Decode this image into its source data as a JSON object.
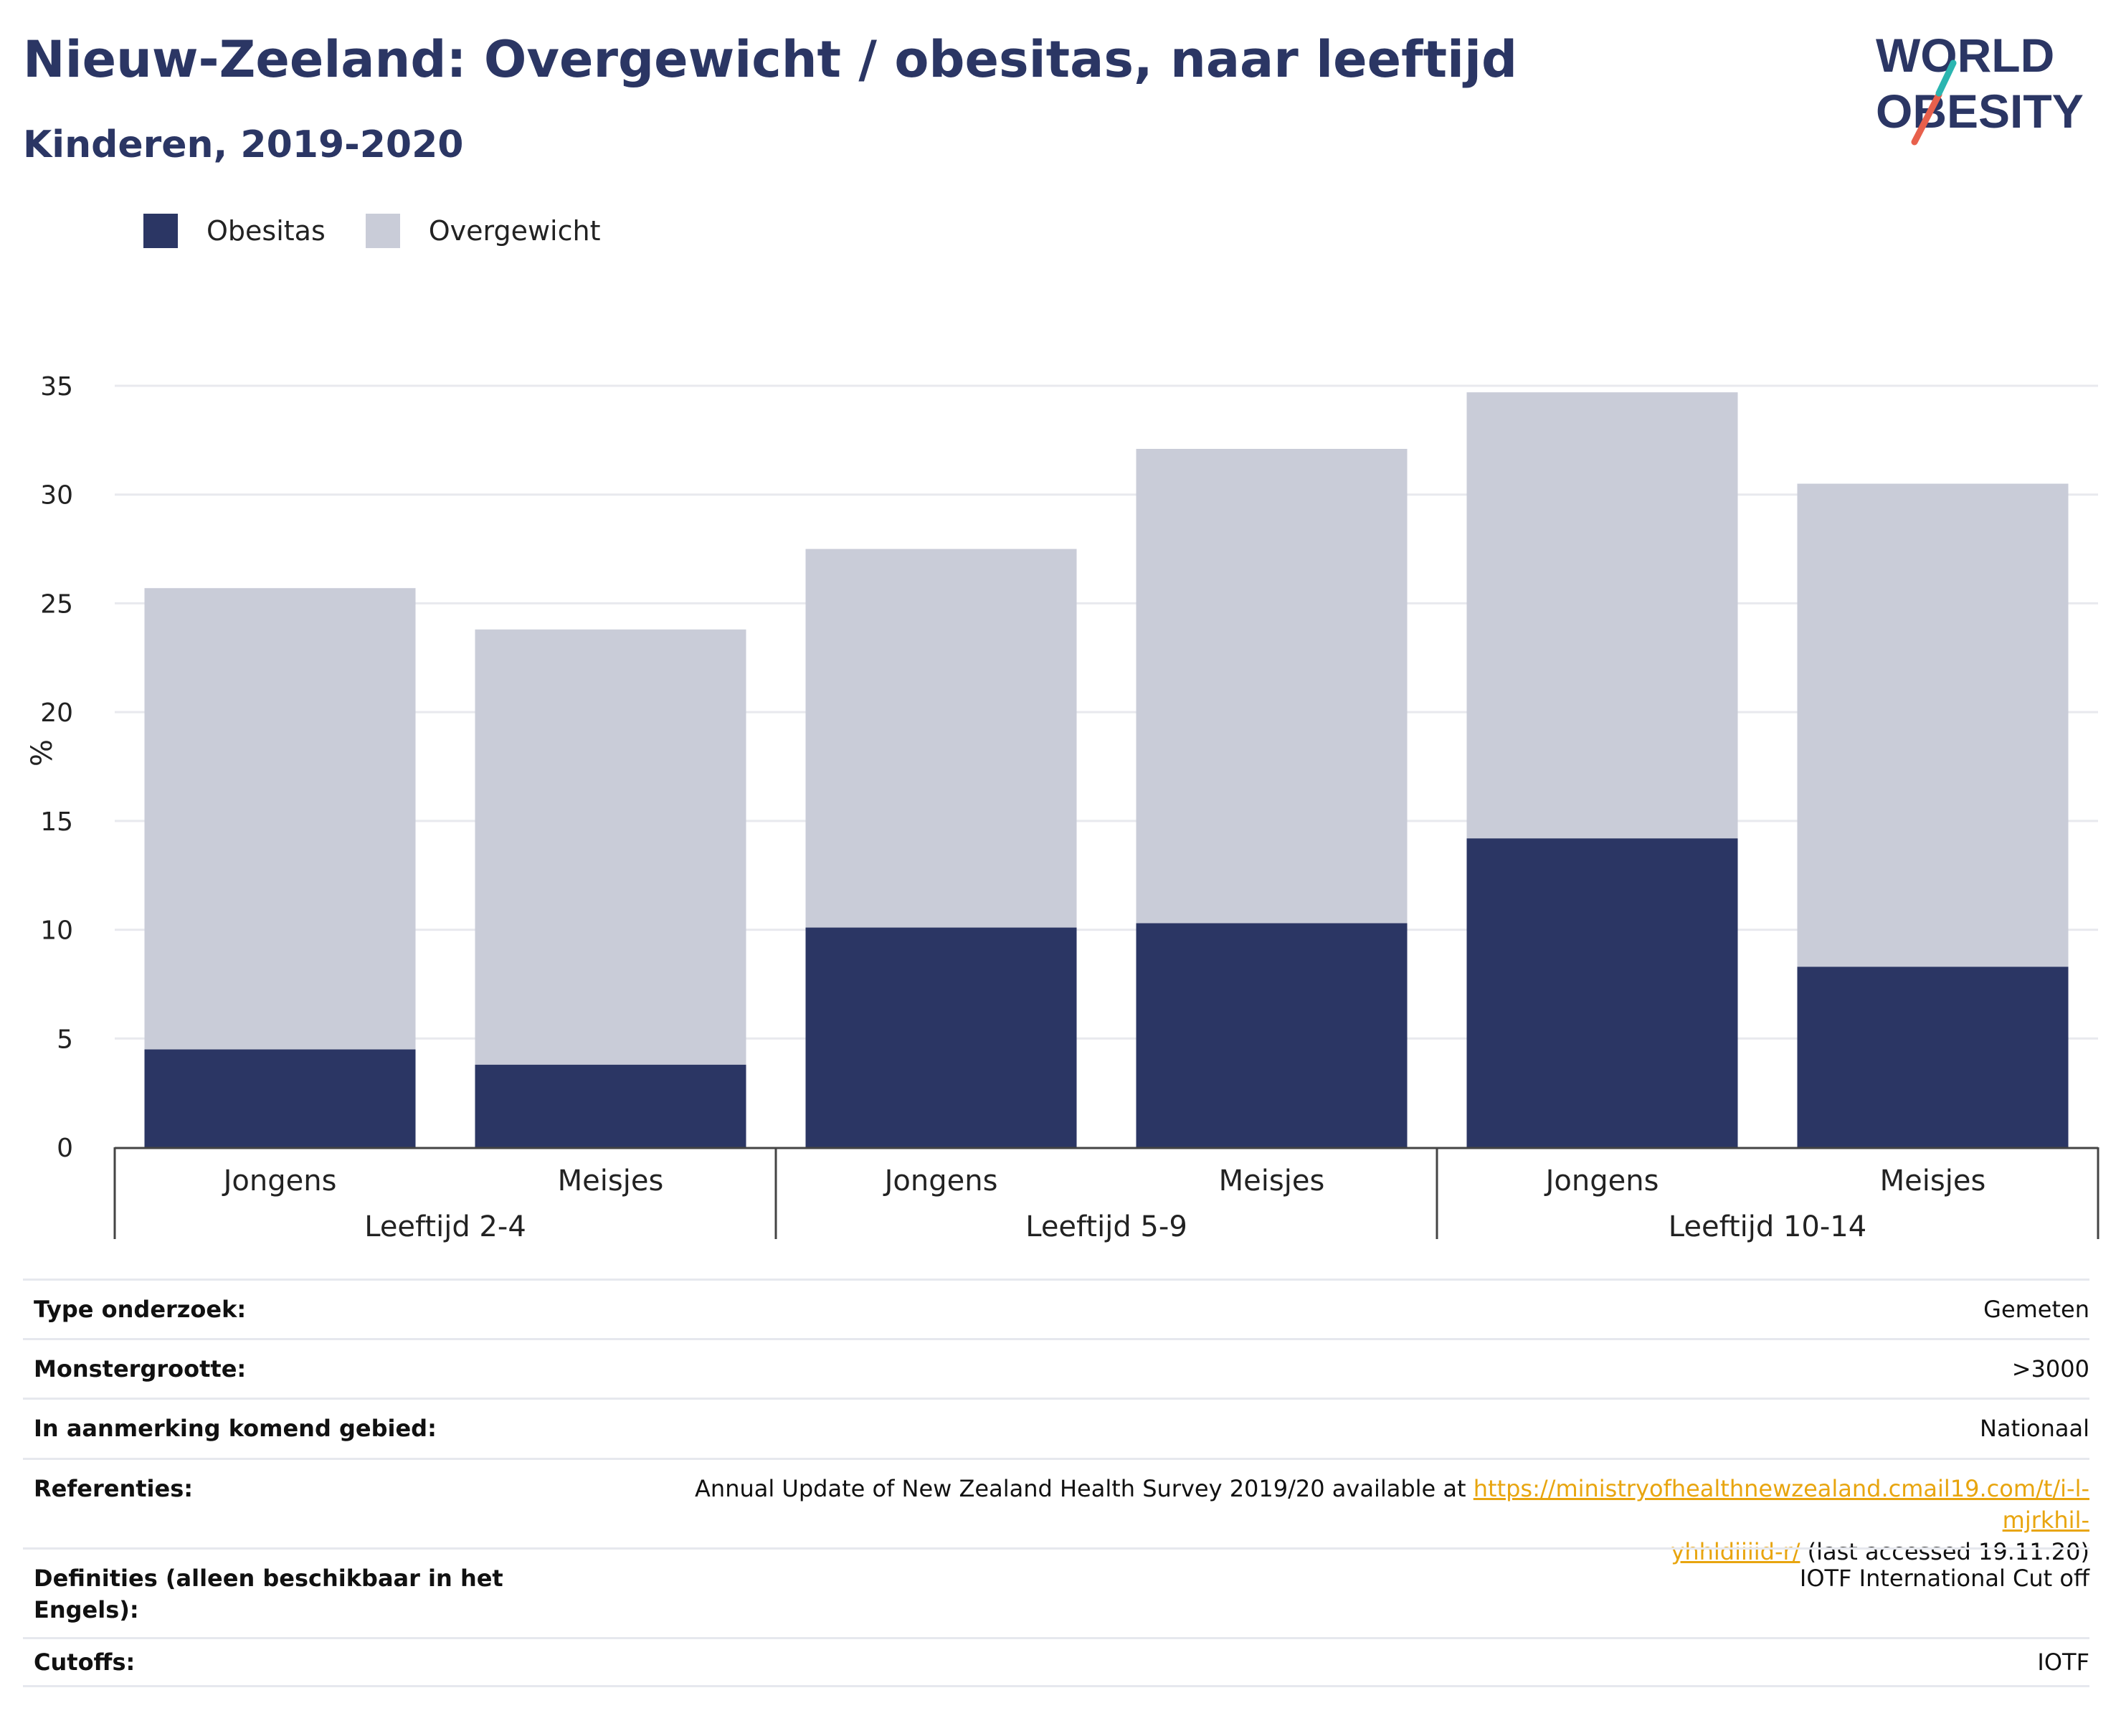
{
  "title": "Nieuw-Zeeland: Overgewicht / obesitas, naar leeftijd",
  "subtitle": "Kinderen, 2019-2020",
  "logo": {
    "line1": "WORLD",
    "line2": "OBESITY"
  },
  "colors": {
    "obesitas": "#2b3664",
    "overgewicht": "#c9ccd8",
    "title": "#2b3664",
    "link": "#e8a50f"
  },
  "legend": [
    {
      "label": "Obesitas",
      "color": "#2b3664"
    },
    {
      "label": "Overgewicht",
      "color": "#c9ccd8"
    }
  ],
  "chart_data": {
    "type": "bar",
    "stacked": true,
    "ylabel": "%",
    "ylim": [
      0,
      35
    ],
    "yticks": [
      0,
      5,
      10,
      15,
      20,
      25,
      30,
      35
    ],
    "grid": true,
    "legend_position": "top-left",
    "groups": [
      {
        "label": "Leeftijd 2-4",
        "categories": [
          "Jongens",
          "Meisjes"
        ]
      },
      {
        "label": "Leeftijd 5-9",
        "categories": [
          "Jongens",
          "Meisjes"
        ]
      },
      {
        "label": "Leeftijd 10-14",
        "categories": [
          "Jongens",
          "Meisjes"
        ]
      }
    ],
    "categories": [
      "Jongens",
      "Meisjes",
      "Jongens",
      "Meisjes",
      "Jongens",
      "Meisjes"
    ],
    "series": [
      {
        "name": "Obesitas",
        "values": [
          4.5,
          3.8,
          10.1,
          10.3,
          14.2,
          8.3
        ]
      },
      {
        "name": "Overgewicht",
        "values": [
          21.2,
          20.0,
          17.4,
          21.8,
          20.5,
          22.2
        ]
      }
    ]
  },
  "table": [
    {
      "label": "Type onderzoek:",
      "value": "Gemeten"
    },
    {
      "label": "Monstergrootte:",
      "value": ">3000"
    },
    {
      "label": "In aanmerking komend gebied:",
      "value": "Nationaal"
    },
    {
      "label": "Referenties:",
      "value_pre": "Annual Update of New Zealand Health Survey 2019/20 available at ",
      "link_part1": "https://ministryofhealthnewzealand.cmail19.com/t/i-l-mjrkhil-",
      "link_part2": "yhhldiiiid-r/",
      "value_post": " (last accessed 19.11.20)"
    },
    {
      "label": "Definities (alleen beschikbaar in het Engels):",
      "value": "IOTF International Cut off"
    },
    {
      "label": "Cutoffs:",
      "value": "IOTF"
    }
  ]
}
